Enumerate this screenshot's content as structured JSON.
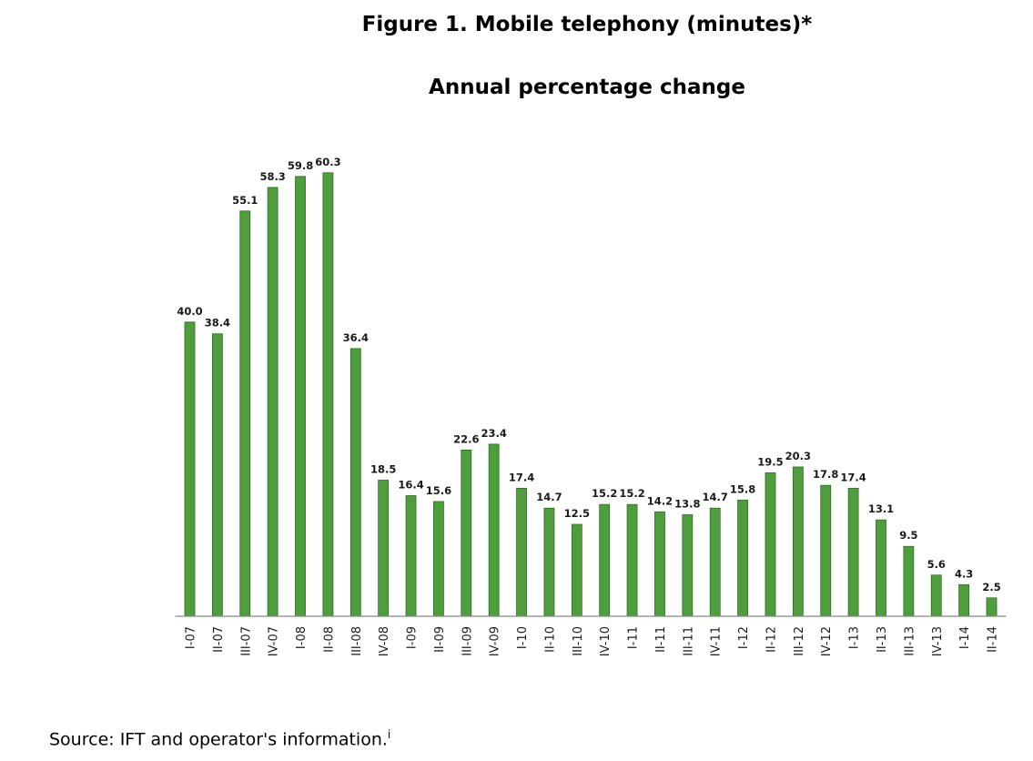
{
  "title": "Figure 1. Mobile telephony (minutes)*",
  "subtitle": "Annual percentage change",
  "source": "Source: IFT and operator's information.",
  "source_note": "i",
  "colors": {
    "bar": "#4f9e3e",
    "bar_edge": "#2f6b22",
    "axis": "#888888",
    "text": "#1a1a1a"
  },
  "chart_data": {
    "type": "bar",
    "title": "Figure 1. Mobile telephony (minutes)*",
    "subtitle": "Annual percentage change",
    "xlabel": "",
    "ylabel": "",
    "ylim": [
      0,
      62
    ],
    "grid": false,
    "legend": "none",
    "categories": [
      "I-07",
      "II-07",
      "III-07",
      "IV-07",
      "I-08",
      "II-08",
      "III-08",
      "IV-08",
      "I-09",
      "II-09",
      "III-09",
      "IV-09",
      "I-10",
      "II-10",
      "III-10",
      "IV-10",
      "I-11",
      "II-11",
      "III-11",
      "IV-11",
      "I-12",
      "II-12",
      "III-12",
      "IV-12",
      "I-13",
      "II-13",
      "III-13",
      "IV-13",
      "I-14",
      "II-14"
    ],
    "values": [
      40.0,
      38.4,
      55.1,
      58.3,
      59.8,
      60.3,
      36.4,
      18.5,
      16.4,
      15.6,
      22.6,
      23.4,
      17.4,
      14.7,
      12.5,
      15.2,
      15.2,
      14.2,
      13.8,
      14.7,
      15.8,
      19.5,
      20.3,
      17.8,
      17.4,
      13.1,
      9.5,
      5.6,
      4.3,
      2.5
    ],
    "labels": [
      "40.0",
      "38.4",
      "55.1",
      "58.3",
      "59.8",
      "60.3",
      "36.4",
      "18.5",
      "16.4",
      "15.6",
      "22.6",
      "23.4",
      "17.4",
      "14.7",
      "12.5",
      "15.2",
      "15.2",
      "14.2",
      "13.8",
      "14.7",
      "15.8",
      "19.5",
      "20.3",
      "17.8",
      "17.4",
      "13.1",
      "9.5",
      "5.6",
      "4.3",
      "2.5"
    ]
  }
}
